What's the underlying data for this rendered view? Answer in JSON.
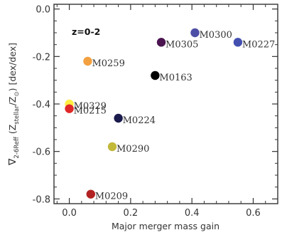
{
  "chart_data": {
    "type": "scatter",
    "xlabel": "Major merger mass gain",
    "ylabel_main": "∇",
    "ylabel_sub": "2-6Reff",
    "ylabel_rest": " (Z",
    "ylabel_sub2": "stellar",
    "ylabel_mid": "/Z",
    "ylabel_sub3": "⊙",
    "ylabel_end": ") [dex/dex]",
    "annotation": "z=0-2",
    "xlim": [
      -0.05,
      0.68
    ],
    "ylim": [
      -0.82,
      0.02
    ],
    "x_ticks": [
      0.0,
      0.2,
      0.4,
      0.6
    ],
    "x_tick_labels": [
      "0.0",
      "0.2",
      "0.4",
      "0.6"
    ],
    "y_ticks": [
      0.0,
      -0.2,
      -0.4,
      -0.6,
      -0.8
    ],
    "y_tick_labels": [
      "0.0",
      "-0.2",
      "-0.4",
      "-0.6",
      "-0.8"
    ],
    "points": [
      {
        "label": "M0300",
        "x": 0.41,
        "y": -0.1,
        "color": "#4d4fa6"
      },
      {
        "label": "M0227",
        "x": 0.55,
        "y": -0.14,
        "color": "#4450b0"
      },
      {
        "label": "M0305",
        "x": 0.3,
        "y": -0.14,
        "color": "#4a1450"
      },
      {
        "label": "M0259",
        "x": 0.06,
        "y": -0.22,
        "color": "#f3a040"
      },
      {
        "label": "M0163",
        "x": 0.28,
        "y": -0.28,
        "color": "#000000"
      },
      {
        "label": "M0329",
        "x": 0.0,
        "y": -0.4,
        "color": "#ffee44"
      },
      {
        "label": "M0215",
        "x": 0.0,
        "y": -0.42,
        "color": "#e02828"
      },
      {
        "label": "M0224",
        "x": 0.16,
        "y": -0.46,
        "color": "#1a1a4d"
      },
      {
        "label": "M0290",
        "x": 0.14,
        "y": -0.58,
        "color": "#c2b83a"
      },
      {
        "label": "M0209",
        "x": 0.07,
        "y": -0.78,
        "color": "#b22222"
      }
    ]
  }
}
